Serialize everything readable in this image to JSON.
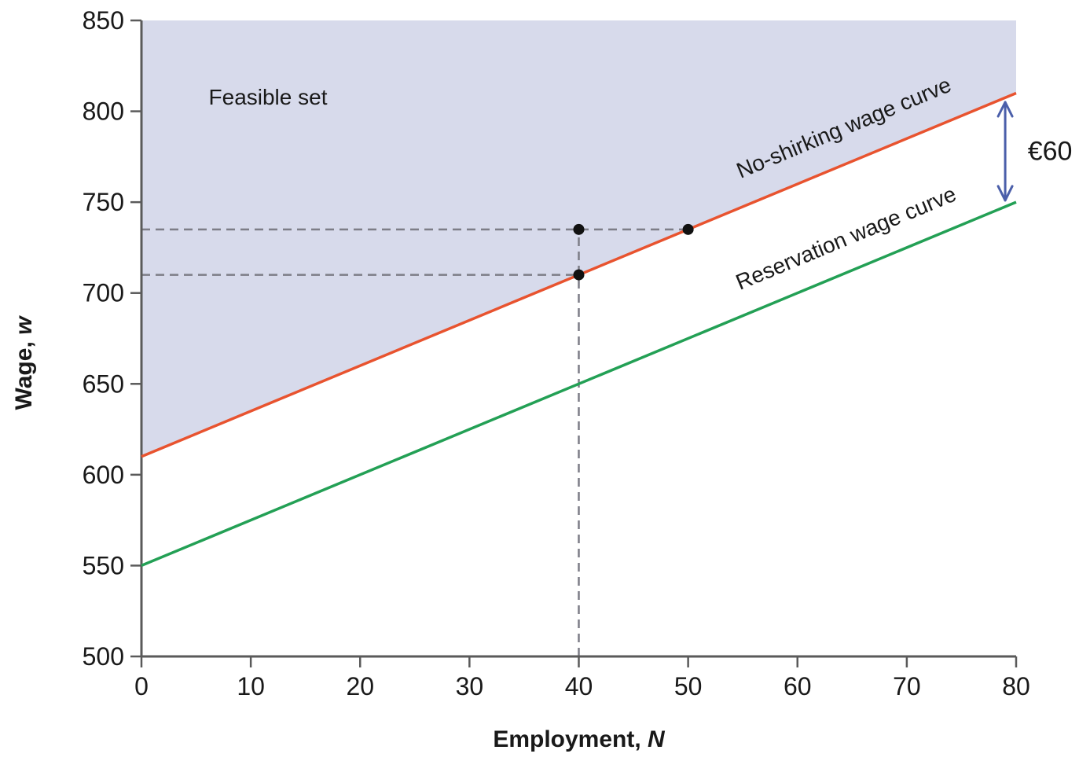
{
  "chart_data": {
    "type": "line",
    "title": "",
    "xlabel": {
      "text": "Employment, ",
      "var": "N"
    },
    "ylabel": {
      "text": "Wage, ",
      "var": "w"
    },
    "xlim": [
      0,
      80
    ],
    "ylim": [
      500,
      850
    ],
    "x_ticks": [
      0,
      10,
      20,
      30,
      40,
      50,
      60,
      70,
      80
    ],
    "y_ticks": [
      500,
      550,
      600,
      650,
      700,
      750,
      800,
      850
    ],
    "grid": false,
    "legend_position": "inline-labels",
    "series": [
      {
        "name": "No-shirking wage curve",
        "x": [
          0,
          80
        ],
        "y": [
          610,
          810
        ],
        "color": "#E8532F"
      },
      {
        "name": "Reservation wage curve",
        "x": [
          0,
          80
        ],
        "y": [
          550,
          750
        ],
        "color": "#23A055"
      }
    ],
    "region": {
      "label": "Feasible set",
      "fill": "#D7DAEB",
      "bounds": "area above the no-shirking wage curve up to w = 850"
    },
    "points": [
      {
        "x": 40,
        "y": 735
      },
      {
        "x": 50,
        "y": 735
      },
      {
        "x": 40,
        "y": 710
      }
    ],
    "guides": {
      "vertical": [
        {
          "x": 40,
          "y_from": 500,
          "y_to": 735
        }
      ],
      "horizontal": [
        {
          "y": 735,
          "x_from": 0,
          "x_to": 50
        },
        {
          "y": 710,
          "x_from": 0,
          "x_to": 40
        }
      ]
    },
    "annotation": {
      "label": "€60",
      "x": 79,
      "y_from": 751,
      "y_to": 805,
      "color": "#4B5FAA"
    }
  },
  "colors": {
    "axis": "#5A5A5A",
    "text": "#191919",
    "guide": "#7D7D87",
    "point": "#111111"
  }
}
